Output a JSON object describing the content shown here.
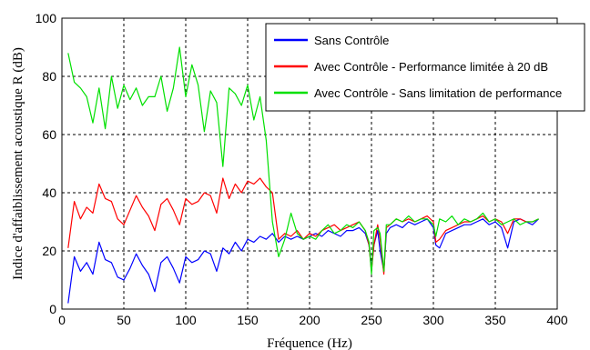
{
  "chart_data": {
    "type": "line",
    "xlabel": "Fréquence (Hz)",
    "ylabel": "Indice d'affaiblissement acoustique R (dB)",
    "xlim": [
      0,
      400
    ],
    "ylim": [
      0,
      100
    ],
    "xticks": [
      0,
      50,
      100,
      150,
      200,
      250,
      300,
      350,
      400
    ],
    "yticks": [
      0,
      20,
      40,
      60,
      80,
      100
    ],
    "grid": true,
    "legend_position": "top-right",
    "series": [
      {
        "name": "Sans Contrôle",
        "color": "#0000ff",
        "x": [
          5,
          10,
          15,
          20,
          25,
          30,
          35,
          40,
          45,
          50,
          55,
          60,
          65,
          70,
          75,
          80,
          85,
          90,
          95,
          100,
          105,
          110,
          115,
          120,
          125,
          130,
          135,
          140,
          145,
          150,
          155,
          160,
          165,
          170,
          175,
          180,
          185,
          190,
          195,
          200,
          205,
          210,
          215,
          220,
          225,
          230,
          235,
          240,
          245,
          248,
          250,
          252,
          255,
          257,
          260,
          262,
          265,
          270,
          275,
          280,
          285,
          290,
          295,
          300,
          302,
          305,
          310,
          315,
          320,
          325,
          330,
          335,
          340,
          345,
          350,
          355,
          360,
          365,
          370,
          375,
          380,
          385
        ],
        "y": [
          2,
          18,
          13,
          16,
          12,
          23,
          17,
          16,
          11,
          10,
          14,
          19,
          15,
          12,
          6,
          16,
          18,
          14,
          9,
          18,
          16,
          17,
          20,
          19,
          13,
          21,
          19,
          23,
          20,
          24,
          23,
          25,
          24,
          26,
          23,
          25,
          24,
          25,
          24,
          25,
          26,
          25,
          27,
          26,
          25,
          27,
          27,
          28,
          26,
          22,
          14,
          22,
          27,
          20,
          13,
          26,
          28,
          29,
          28,
          30,
          29,
          30,
          31,
          28,
          22,
          21,
          26,
          27,
          28,
          29,
          29,
          30,
          31,
          29,
          30,
          28,
          21,
          30,
          31,
          30,
          29,
          31
        ]
      },
      {
        "name": "Avec Contrôle - Performance limitée à 20 dB",
        "color": "#ff0000",
        "x": [
          5,
          10,
          15,
          20,
          25,
          30,
          35,
          40,
          45,
          50,
          55,
          60,
          65,
          70,
          75,
          80,
          85,
          90,
          95,
          100,
          105,
          110,
          115,
          120,
          125,
          130,
          135,
          140,
          145,
          150,
          155,
          160,
          165,
          170,
          175,
          180,
          185,
          190,
          195,
          200,
          205,
          210,
          215,
          220,
          225,
          230,
          235,
          240,
          245,
          248,
          250,
          252,
          255,
          257,
          260,
          262,
          265,
          270,
          275,
          280,
          285,
          290,
          295,
          300,
          302,
          305,
          310,
          315,
          320,
          325,
          330,
          335,
          340,
          345,
          350,
          355,
          360,
          365,
          370,
          375,
          380,
          385
        ],
        "y": [
          21,
          37,
          31,
          35,
          33,
          43,
          38,
          37,
          31,
          29,
          34,
          39,
          35,
          32,
          27,
          36,
          38,
          34,
          29,
          38,
          36,
          37,
          40,
          39,
          33,
          45,
          38,
          43,
          40,
          44,
          43,
          45,
          42,
          40,
          24,
          26,
          25,
          27,
          24,
          26,
          25,
          27,
          28,
          29,
          27,
          28,
          29,
          30,
          27,
          22,
          13,
          22,
          29,
          24,
          12,
          28,
          29,
          31,
          30,
          31,
          30,
          31,
          32,
          30,
          23,
          24,
          27,
          28,
          29,
          30,
          30,
          31,
          32,
          30,
          31,
          30,
          26,
          31,
          31,
          30,
          30,
          31
        ]
      },
      {
        "name": "Avec Contrôle - Sans limitation de performance",
        "color": "#00e000",
        "x": [
          5,
          10,
          15,
          20,
          25,
          30,
          35,
          40,
          45,
          50,
          55,
          60,
          65,
          70,
          75,
          80,
          85,
          90,
          95,
          100,
          105,
          110,
          115,
          120,
          125,
          130,
          135,
          140,
          145,
          150,
          155,
          160,
          165,
          170,
          175,
          180,
          185,
          190,
          195,
          200,
          205,
          210,
          215,
          220,
          225,
          230,
          235,
          240,
          245,
          248,
          250,
          252,
          255,
          257,
          260,
          262,
          265,
          270,
          275,
          280,
          285,
          290,
          295,
          300,
          302,
          305,
          310,
          315,
          320,
          325,
          330,
          335,
          340,
          345,
          350,
          355,
          360,
          365,
          370,
          375,
          380,
          385
        ],
        "y": [
          88,
          78,
          76,
          73,
          64,
          76,
          62,
          80,
          69,
          77,
          72,
          76,
          70,
          73,
          73,
          80,
          68,
          76,
          90,
          73,
          84,
          77,
          61,
          75,
          71,
          49,
          76,
          74,
          70,
          77,
          65,
          73,
          58,
          30,
          18,
          24,
          33,
          26,
          24,
          25,
          24,
          27,
          29,
          26,
          27,
          29,
          28,
          30,
          27,
          23,
          12,
          27,
          28,
          26,
          13,
          29,
          29,
          31,
          30,
          32,
          30,
          31,
          31,
          29,
          25,
          31,
          30,
          32,
          29,
          31,
          30,
          31,
          33,
          30,
          31,
          29,
          30,
          31,
          29,
          30,
          30,
          31
        ]
      }
    ]
  }
}
